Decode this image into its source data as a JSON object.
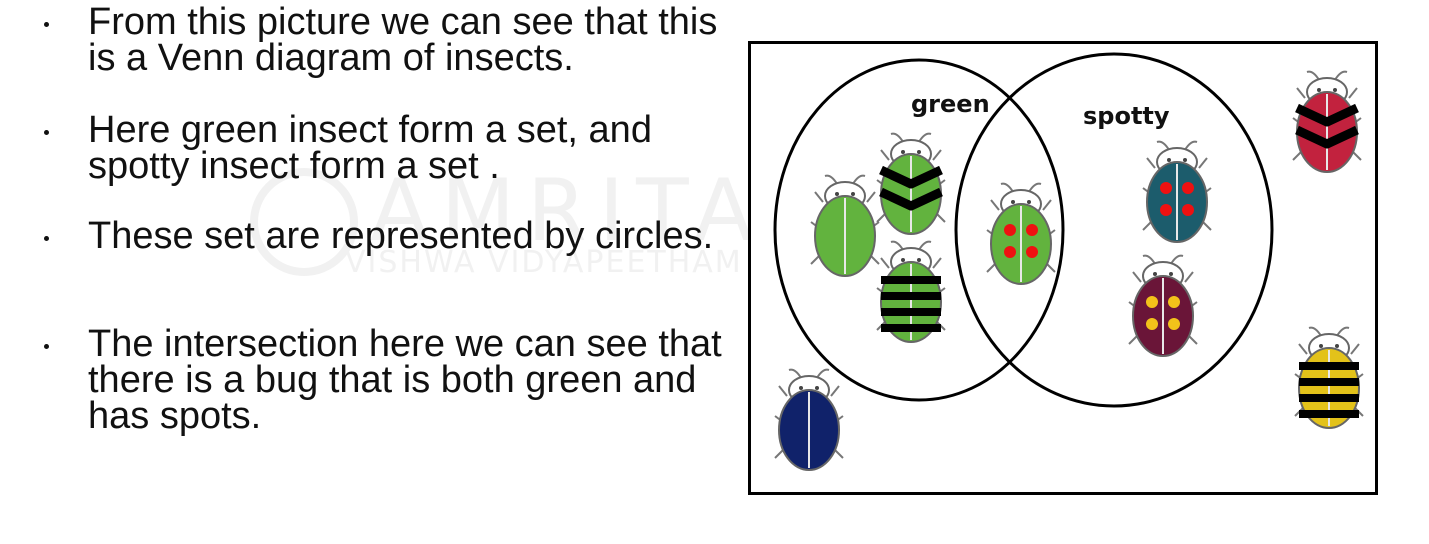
{
  "bullets": [
    "From this picture we can see that this is a Venn diagram of insects.",
    "Here  green insect form a set, and spotty  insect form a set .",
    "These set are represented by circles.",
    "The intersection here we can see that there is a bug that is both green and has spots."
  ],
  "watermark": {
    "main": "AMRITA",
    "sub": "VISHWA VIDYAPEETHAM"
  },
  "venn": {
    "sets": [
      {
        "label": "green"
      },
      {
        "label": "spotty"
      }
    ],
    "insects": [
      {
        "id": "green-plain",
        "region": "green only",
        "body": "#62b33e",
        "pattern": "plain"
      },
      {
        "id": "green-chevrons",
        "region": "green only",
        "body": "#62b33e",
        "pattern": "chevrons"
      },
      {
        "id": "green-bars",
        "region": "green only",
        "body": "#62b33e",
        "pattern": "bars"
      },
      {
        "id": "green-red-spots",
        "region": "green and spotty",
        "body": "#62b33e",
        "pattern": "spots",
        "spot_color": "#ee1111"
      },
      {
        "id": "teal-red-spots",
        "region": "spotty only",
        "body": "#1c5c6c",
        "pattern": "spots",
        "spot_color": "#ee1111"
      },
      {
        "id": "maroon-yellow-spots",
        "region": "spotty only",
        "body": "#6a1538",
        "pattern": "spots",
        "spot_color": "#f2c21a"
      },
      {
        "id": "red-chevrons",
        "region": "outside",
        "body": "#c2223e",
        "pattern": "chevrons"
      },
      {
        "id": "navy-plain",
        "region": "outside",
        "body": "#10226a",
        "pattern": "plain"
      },
      {
        "id": "yellow-bars",
        "region": "outside",
        "body": "#e3c21a",
        "pattern": "bars"
      }
    ]
  },
  "colors": {
    "text": "#111111",
    "outline": "#000000",
    "background": "#ffffff"
  }
}
